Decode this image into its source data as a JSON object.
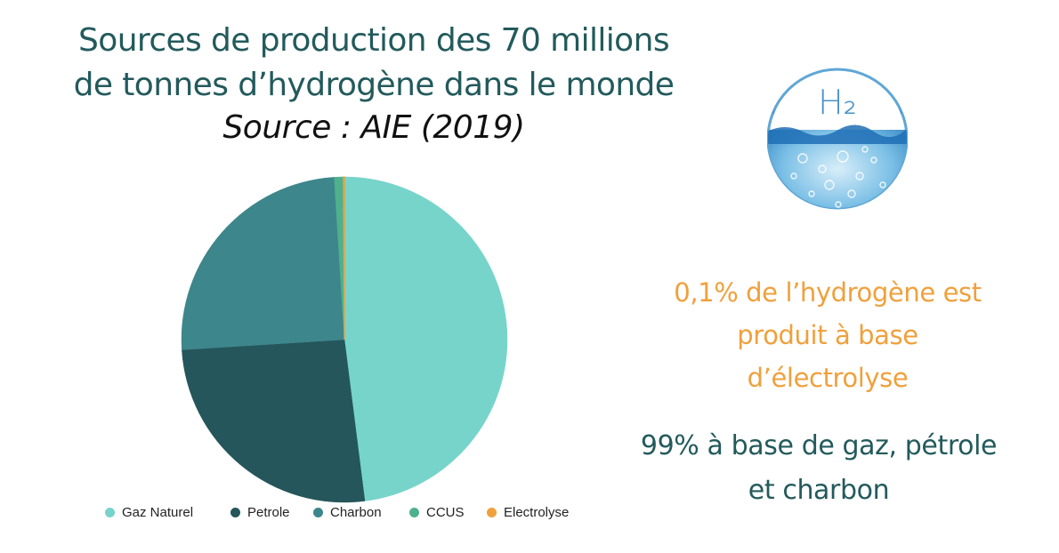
{
  "header": {
    "title_line1": "Sources de production des 70 millions",
    "title_line2": "de tonnes d’hydrogène dans le monde",
    "subtitle": "Source : AIE (2019)"
  },
  "logo": {
    "label": "H₂",
    "icon": "hydrogen-water-sphere-icon"
  },
  "notes": {
    "electrolyse_line1": "0,1% de l’hydrogène est",
    "electrolyse_line2": "produit à base",
    "electrolyse_line3": "d’électrolyse",
    "fossil_line1": "99% à base de gaz, pétrole",
    "fossil_line2": "et charbon"
  },
  "colors": {
    "title": "#235a5c",
    "accent_orange": "#f0a03c",
    "gaz_naturel": "#76d4cb",
    "petrole": "#24565b",
    "charbon": "#3d868b",
    "ccus": "#4fb08d",
    "electrolyse": "#f0a03c"
  },
  "chart_data": {
    "type": "pie",
    "title": "Sources de production des 70 millions de tonnes d’hydrogène dans le monde",
    "subtitle": "Source : AIE (2019)",
    "categories": [
      "Gaz Naturel",
      "Petrole",
      "Charbon",
      "CCUS",
      "Electrolyse"
    ],
    "values": [
      48,
      26,
      25,
      0.9,
      0.1
    ],
    "unit": "%",
    "colors": [
      "#76d4cb",
      "#24565b",
      "#3d868b",
      "#4fb08d",
      "#f0a03c"
    ],
    "start_angle": "12 o'clock, clockwise",
    "legend_position": "bottom",
    "data_labels": false
  },
  "legend": [
    {
      "label": "Gaz Naturel",
      "color": "#76d4cb"
    },
    {
      "label": "Petrole",
      "color": "#24565b"
    },
    {
      "label": "Charbon",
      "color": "#3d868b"
    },
    {
      "label": "CCUS",
      "color": "#4fb08d"
    },
    {
      "label": "Electrolyse",
      "color": "#f0a03c"
    }
  ]
}
